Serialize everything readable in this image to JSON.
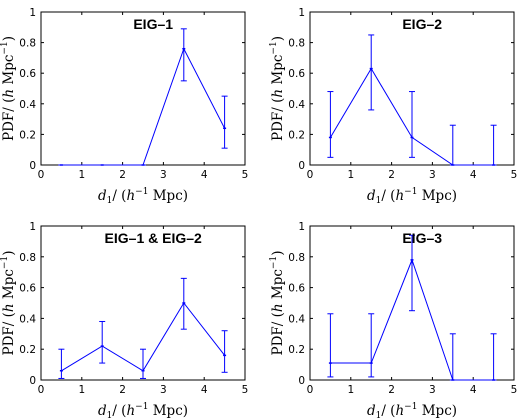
{
  "chart_data": [
    {
      "type": "line",
      "title": "EIG–1",
      "xlabel": [
        "d",
        "1",
        "/ (",
        "h",
        "−1",
        " Mpc)"
      ],
      "ylabel": [
        "PDF/ (",
        "h",
        " Mpc",
        "−1",
        ")"
      ],
      "xlim": [
        0,
        5
      ],
      "ylim": [
        0,
        1
      ],
      "xticks": [
        "0",
        "1",
        "2",
        "3",
        "4",
        "5"
      ],
      "yticks": [
        "0",
        "0.2",
        "0.4",
        "0.6",
        "0.8",
        "1"
      ],
      "series": [
        {
          "x": [
            0.5,
            1.5,
            2.5,
            3.5,
            4.5
          ],
          "y": [
            0,
            0,
            0,
            0.76,
            0.24
          ],
          "err_low": [
            0,
            0,
            0,
            0.55,
            0.11
          ],
          "err_high": [
            0,
            0,
            0,
            0.89,
            0.45
          ]
        }
      ],
      "color": "#0000ff"
    },
    {
      "type": "line",
      "title": "EIG–2",
      "xlabel": [
        "d",
        "1",
        "/ (",
        "h",
        "−1",
        " Mpc)"
      ],
      "ylabel": [
        "PDF/ (",
        "h",
        " Mpc",
        "−1",
        ")"
      ],
      "xlim": [
        0,
        5
      ],
      "ylim": [
        0,
        1
      ],
      "xticks": [
        "0",
        "1",
        "2",
        "3",
        "4",
        "5"
      ],
      "yticks": [
        "0",
        "0.2",
        "0.4",
        "0.6",
        "0.8",
        "1"
      ],
      "series": [
        {
          "x": [
            0.5,
            1.5,
            2.5,
            3.5,
            4.5
          ],
          "y": [
            0.18,
            0.63,
            0.18,
            0,
            0
          ],
          "err_low": [
            0.05,
            0.36,
            0.05,
            0,
            0
          ],
          "err_high": [
            0.48,
            0.85,
            0.48,
            0.26,
            0.26
          ]
        }
      ],
      "color": "#0000ff"
    },
    {
      "type": "line",
      "title": "EIG–1 & EIG–2",
      "xlabel": [
        "d",
        "1",
        "/ (",
        "h",
        "−1",
        " Mpc)"
      ],
      "ylabel": [
        "PDF/ (",
        "h",
        " Mpc",
        "−1",
        ")"
      ],
      "xlim": [
        0,
        5
      ],
      "ylim": [
        0,
        1
      ],
      "xticks": [
        "0",
        "1",
        "2",
        "3",
        "4",
        "5"
      ],
      "yticks": [
        "0",
        "0.2",
        "0.4",
        "0.6",
        "0.8",
        "1"
      ],
      "series": [
        {
          "x": [
            0.5,
            1.5,
            2.5,
            3.5,
            4.5
          ],
          "y": [
            0.06,
            0.22,
            0.06,
            0.5,
            0.16
          ],
          "err_low": [
            0.01,
            0.11,
            0.01,
            0.33,
            0.05
          ],
          "err_high": [
            0.2,
            0.38,
            0.2,
            0.66,
            0.32
          ]
        }
      ],
      "color": "#0000ff"
    },
    {
      "type": "line",
      "title": "EIG–3",
      "xlabel": [
        "d",
        "1",
        "/ (",
        "h",
        "−1",
        " Mpc)"
      ],
      "ylabel": [
        "PDF/ (",
        "h",
        " Mpc",
        "−1",
        ")"
      ],
      "xlim": [
        0,
        5
      ],
      "ylim": [
        0,
        1
      ],
      "xticks": [
        "0",
        "1",
        "2",
        "3",
        "4",
        "5"
      ],
      "yticks": [
        "0",
        "0.2",
        "0.4",
        "0.6",
        "0.8",
        "1"
      ],
      "series": [
        {
          "x": [
            0.5,
            1.5,
            2.5,
            3.5,
            4.5
          ],
          "y": [
            0.11,
            0.11,
            0.78,
            0,
            0
          ],
          "err_low": [
            0.02,
            0.02,
            0.45,
            0,
            0
          ],
          "err_high": [
            0.43,
            0.43,
            0.94,
            0.3,
            0.3
          ]
        }
      ],
      "color": "#0000ff"
    }
  ]
}
